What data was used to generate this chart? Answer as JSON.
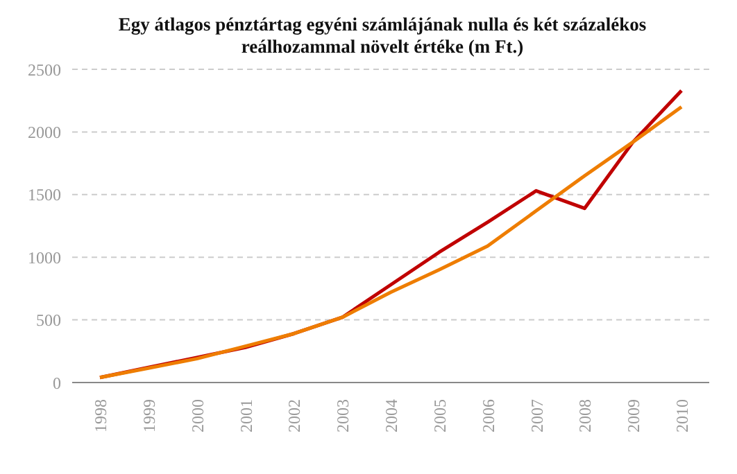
{
  "chart_data": {
    "type": "line",
    "title": "Egy átlagos pénztártag egyéni számlájának nulla és két százalékos reálhozammal növelt értéke (m Ft.)",
    "categories": [
      "1998",
      "1999",
      "2000",
      "2001",
      "2002",
      "2003",
      "2004",
      "2005",
      "2006",
      "2007",
      "2008",
      "2009",
      "2010"
    ],
    "series": [
      {
        "color": "#c00000",
        "values": [
          40,
          120,
          200,
          280,
          390,
          520,
          780,
          1040,
          1280,
          1530,
          1390,
          1920,
          2330
        ]
      },
      {
        "color": "#ee7d00",
        "values": [
          40,
          115,
          190,
          290,
          390,
          520,
          720,
          900,
          1090,
          1370,
          1650,
          1920,
          2200
        ]
      }
    ],
    "ylim": [
      0,
      2500
    ],
    "yticks": [
      0,
      500,
      1000,
      1500,
      2000,
      2500
    ],
    "grid": "y",
    "legend": false,
    "marker": "none",
    "line_style": "solid"
  }
}
